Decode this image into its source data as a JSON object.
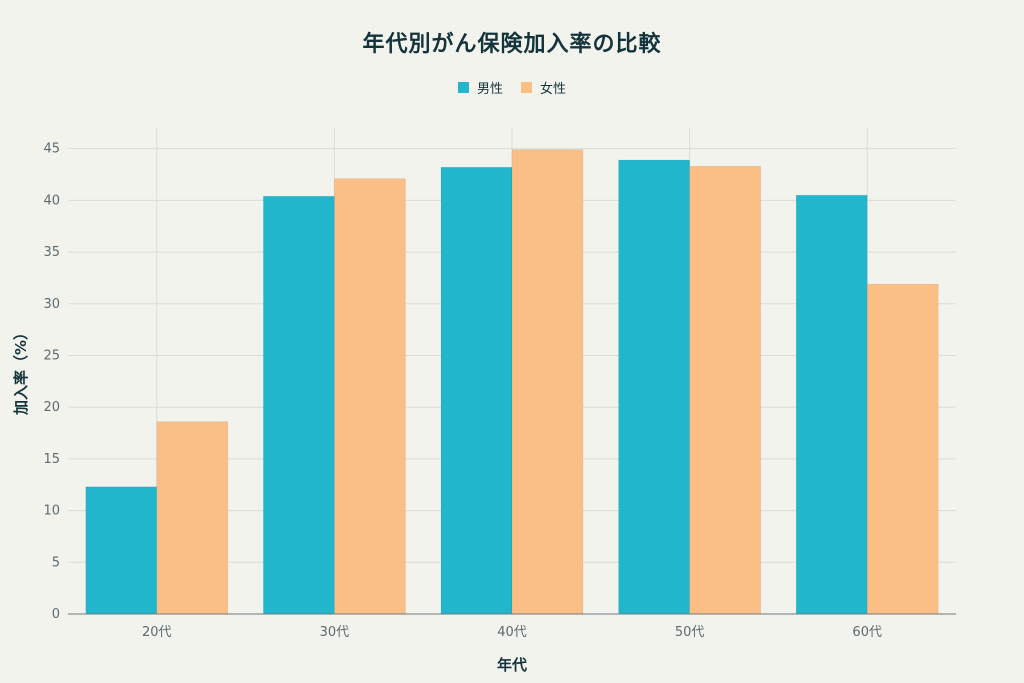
{
  "chart_data": {
    "type": "bar",
    "title": "年代別がん保険加入率の比較",
    "xlabel": "年代",
    "ylabel": "加入率（%）",
    "categories": [
      "20代",
      "30代",
      "40代",
      "50代",
      "60代"
    ],
    "series": [
      {
        "name": "男性",
        "color": "#21b6cb",
        "values": [
          12.3,
          40.4,
          43.2,
          43.9,
          40.5
        ]
      },
      {
        "name": "女性",
        "color": "#fbbf85",
        "values": [
          18.6,
          42.1,
          44.9,
          43.3,
          31.9
        ]
      }
    ],
    "ylim": [
      0,
      47
    ],
    "yticks": [
      0,
      5,
      10,
      15,
      20,
      25,
      30,
      35,
      40,
      45
    ],
    "grid": true,
    "legend_position": "top-center"
  }
}
